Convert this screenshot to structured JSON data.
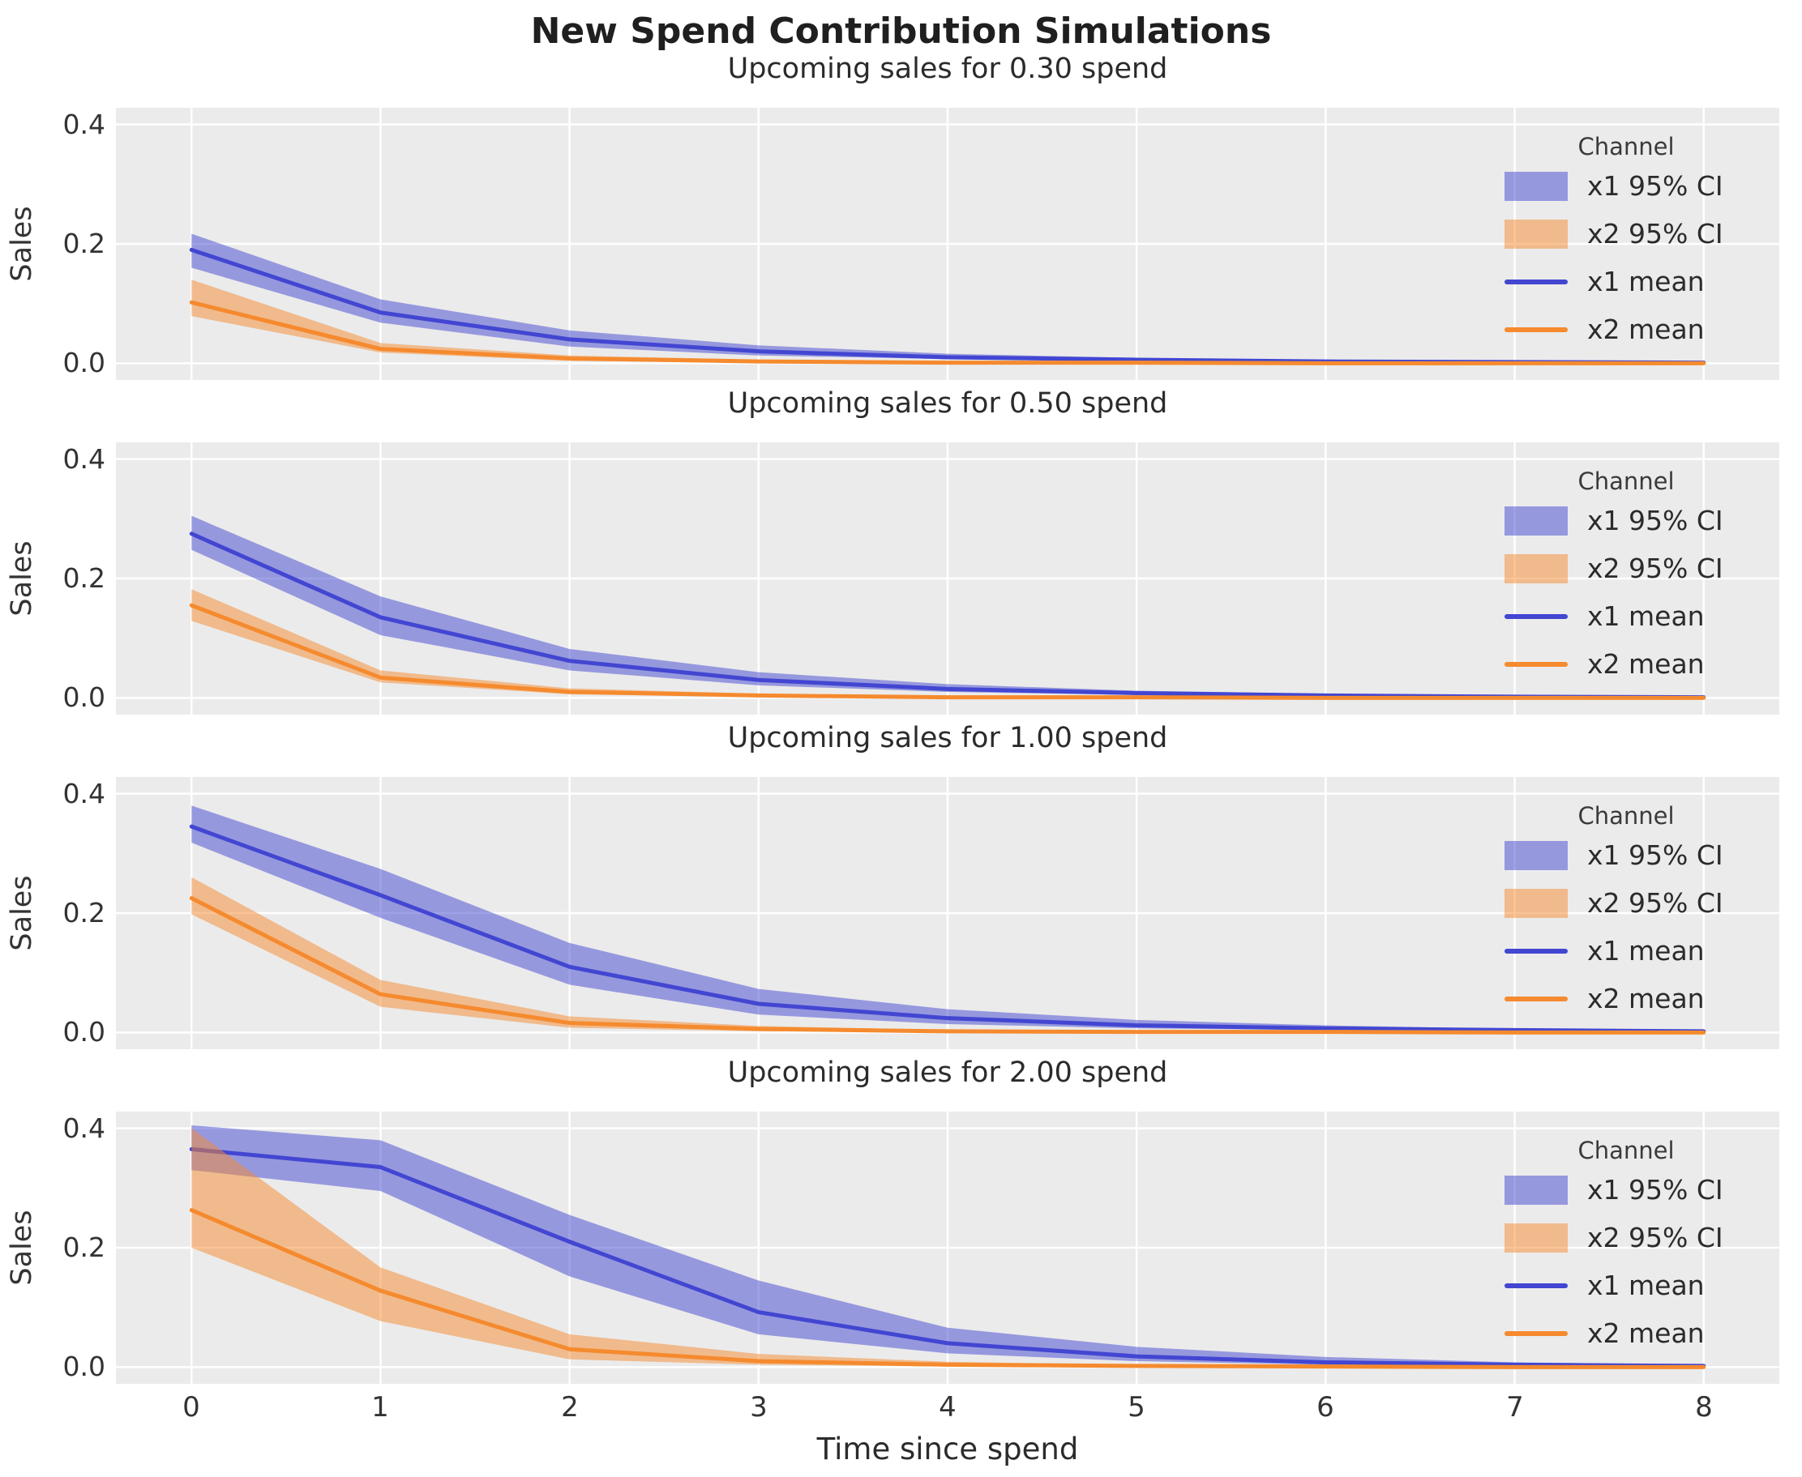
{
  "title": "New Spend Contribution Simulations",
  "xlabel": "Time since spend",
  "ylabel": "Sales",
  "colors": {
    "x1": "#4246d1",
    "x2": "#f58a2e",
    "axes_bg": "#ebebeb",
    "grid": "#ffffff",
    "text": "#2b2b2b"
  },
  "xaxis": {
    "ticks": [
      "0",
      "1",
      "2",
      "3",
      "4",
      "5",
      "6",
      "7",
      "8"
    ]
  },
  "yaxis": {
    "ticks": [
      "0.0",
      "0.2",
      "0.4"
    ]
  },
  "legend": {
    "title": "Channel",
    "items": [
      {
        "label": "x1 95% CI"
      },
      {
        "label": "x2 95% CI"
      },
      {
        "label": "x1 mean"
      },
      {
        "label": "x2 mean"
      }
    ]
  },
  "chart_data": [
    {
      "type": "line",
      "title": "Upcoming sales for 0.30 spend",
      "spend": 0.3,
      "xlabel": "Time since spend",
      "ylabel": "Sales",
      "x": [
        0,
        1,
        2,
        3,
        4,
        5,
        6,
        7,
        8
      ],
      "xlim": [
        -0.4,
        8.4
      ],
      "ylim": [
        -0.028,
        0.428
      ],
      "xticks": [
        0,
        1,
        2,
        3,
        4,
        5,
        6,
        7,
        8
      ],
      "yticks": [
        0.0,
        0.2,
        0.4
      ],
      "grid": true,
      "legend_position": "upper right",
      "series": [
        {
          "name": "x1 mean",
          "color_key": "x1",
          "mean": [
            0.19,
            0.085,
            0.04,
            0.02,
            0.01,
            0.006,
            0.003,
            0.002,
            0.001
          ],
          "ci_lower": [
            0.16,
            0.068,
            0.028,
            0.013,
            0.007,
            0.004,
            0.002,
            0.001,
            0.001
          ],
          "ci_upper": [
            0.217,
            0.107,
            0.055,
            0.03,
            0.016,
            0.009,
            0.005,
            0.003,
            0.002
          ]
        },
        {
          "name": "x2 mean",
          "color_key": "x2",
          "mean": [
            0.102,
            0.024,
            0.008,
            0.003,
            0.001,
            0.001,
            0.0,
            0.0,
            0.0
          ],
          "ci_lower": [
            0.079,
            0.018,
            0.004,
            0.001,
            0.0,
            0.0,
            0.0,
            0.0,
            0.0
          ],
          "ci_upper": [
            0.14,
            0.034,
            0.013,
            0.006,
            0.002,
            0.001,
            0.001,
            0.0,
            0.0
          ]
        }
      ]
    },
    {
      "type": "line",
      "title": "Upcoming sales for 0.50 spend",
      "spend": 0.5,
      "xlabel": "Time since spend",
      "ylabel": "Sales",
      "x": [
        0,
        1,
        2,
        3,
        4,
        5,
        6,
        7,
        8
      ],
      "xlim": [
        -0.4,
        8.4
      ],
      "ylim": [
        -0.028,
        0.428
      ],
      "xticks": [
        0,
        1,
        2,
        3,
        4,
        5,
        6,
        7,
        8
      ],
      "yticks": [
        0.0,
        0.2,
        0.4
      ],
      "grid": true,
      "legend_position": "upper right",
      "series": [
        {
          "name": "x1 mean",
          "color_key": "x1",
          "mean": [
            0.275,
            0.135,
            0.062,
            0.03,
            0.015,
            0.008,
            0.004,
            0.002,
            0.001
          ],
          "ci_lower": [
            0.248,
            0.105,
            0.046,
            0.021,
            0.01,
            0.005,
            0.002,
            0.001,
            0.001
          ],
          "ci_upper": [
            0.305,
            0.17,
            0.082,
            0.043,
            0.023,
            0.012,
            0.007,
            0.004,
            0.002
          ]
        },
        {
          "name": "x2 mean",
          "color_key": "x2",
          "mean": [
            0.155,
            0.034,
            0.01,
            0.004,
            0.001,
            0.001,
            0.0,
            0.0,
            0.0
          ],
          "ci_lower": [
            0.129,
            0.026,
            0.006,
            0.002,
            0.0,
            0.0,
            0.0,
            0.0,
            0.0
          ],
          "ci_upper": [
            0.182,
            0.046,
            0.016,
            0.007,
            0.002,
            0.001,
            0.001,
            0.0,
            0.0
          ]
        }
      ]
    },
    {
      "type": "line",
      "title": "Upcoming sales for 1.00 spend",
      "spend": 1.0,
      "xlabel": "Time since spend",
      "ylabel": "Sales",
      "x": [
        0,
        1,
        2,
        3,
        4,
        5,
        6,
        7,
        8
      ],
      "xlim": [
        -0.4,
        8.4
      ],
      "ylim": [
        -0.028,
        0.428
      ],
      "xticks": [
        0,
        1,
        2,
        3,
        4,
        5,
        6,
        7,
        8
      ],
      "yticks": [
        0.0,
        0.2,
        0.4
      ],
      "grid": true,
      "legend_position": "upper right",
      "series": [
        {
          "name": "x1 mean",
          "color_key": "x1",
          "mean": [
            0.345,
            0.23,
            0.11,
            0.048,
            0.024,
            0.012,
            0.007,
            0.004,
            0.002
          ],
          "ci_lower": [
            0.318,
            0.192,
            0.08,
            0.03,
            0.014,
            0.007,
            0.004,
            0.002,
            0.001
          ],
          "ci_upper": [
            0.38,
            0.274,
            0.15,
            0.073,
            0.039,
            0.021,
            0.012,
            0.006,
            0.003
          ]
        },
        {
          "name": "x2 mean",
          "color_key": "x2",
          "mean": [
            0.225,
            0.064,
            0.016,
            0.006,
            0.002,
            0.001,
            0.001,
            0.0,
            0.0
          ],
          "ci_lower": [
            0.198,
            0.043,
            0.008,
            0.002,
            0.001,
            0.0,
            0.0,
            0.0,
            0.0
          ],
          "ci_upper": [
            0.26,
            0.088,
            0.027,
            0.011,
            0.004,
            0.002,
            0.001,
            0.001,
            0.0
          ]
        }
      ]
    },
    {
      "type": "line",
      "title": "Upcoming sales for 2.00 spend",
      "spend": 2.0,
      "xlabel": "Time since spend",
      "ylabel": "Sales",
      "x": [
        0,
        1,
        2,
        3,
        4,
        5,
        6,
        7,
        8
      ],
      "xlim": [
        -0.4,
        8.4
      ],
      "ylim": [
        -0.028,
        0.428
      ],
      "xticks": [
        0,
        1,
        2,
        3,
        4,
        5,
        6,
        7,
        8
      ],
      "yticks": [
        0.0,
        0.2,
        0.4
      ],
      "grid": true,
      "legend_position": "upper right",
      "series": [
        {
          "name": "x1 mean",
          "color_key": "x1",
          "mean": [
            0.365,
            0.335,
            0.21,
            0.092,
            0.04,
            0.018,
            0.008,
            0.004,
            0.002
          ],
          "ci_lower": [
            0.33,
            0.295,
            0.152,
            0.055,
            0.023,
            0.01,
            0.004,
            0.002,
            0.001
          ],
          "ci_upper": [
            0.405,
            0.38,
            0.255,
            0.145,
            0.066,
            0.034,
            0.017,
            0.008,
            0.004
          ]
        },
        {
          "name": "x2 mean",
          "color_key": "x2",
          "mean": [
            0.263,
            0.128,
            0.03,
            0.01,
            0.004,
            0.002,
            0.001,
            0.0,
            0.0
          ],
          "ci_lower": [
            0.2,
            0.077,
            0.013,
            0.004,
            0.001,
            0.0,
            0.0,
            0.0,
            0.0
          ],
          "ci_upper": [
            0.4,
            0.167,
            0.055,
            0.022,
            0.009,
            0.004,
            0.002,
            0.001,
            0.0
          ]
        }
      ]
    }
  ]
}
